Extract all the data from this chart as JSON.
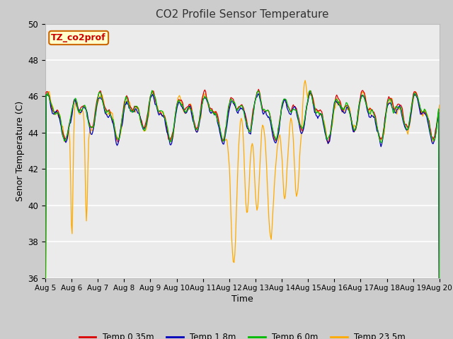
{
  "title": "CO2 Profile Sensor Temperature",
  "xlabel": "Time",
  "ylabel": "Senor Temperature (C)",
  "ylim": [
    36,
    50
  ],
  "legend_label": "TZ_co2prof",
  "legend_box_color": "#ffffcc",
  "legend_box_edge": "#cc6600",
  "legend_text_color": "#cc0000",
  "series_labels": [
    "Temp 0.35m",
    "Temp 1.8m",
    "Temp 6.0m",
    "Temp 23.5m"
  ],
  "series_colors": [
    "#dd0000",
    "#0000bb",
    "#00bb00",
    "#ffaa00"
  ],
  "fig_bg_color": "#cccccc",
  "plot_bg_color": "#ebebeb",
  "grid_color": "#ffffff",
  "n_points": 500,
  "yticks": [
    36,
    38,
    40,
    42,
    44,
    46,
    48,
    50
  ]
}
